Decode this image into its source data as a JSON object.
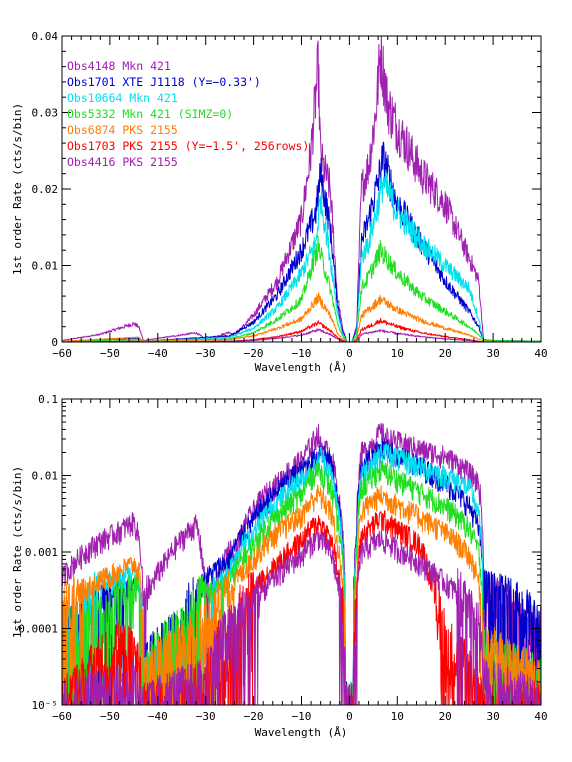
{
  "chart_data": [
    {
      "type": "line",
      "id": "top",
      "yscale": "linear",
      "xlabel": "Wavelength (Å)",
      "ylabel": "1st order Rate (cts/s/bin)",
      "xlim": [
        -60,
        40
      ],
      "ylim": [
        0,
        0.04
      ],
      "x_ticks": [
        -60,
        -50,
        -40,
        -30,
        -20,
        -10,
        0,
        10,
        20,
        30,
        40
      ],
      "x_tick_labels": [
        "−60",
        "−50",
        "−40",
        "−30",
        "−20",
        "−10",
        "0",
        "10",
        "20",
        "30",
        "40"
      ],
      "y_ticks": [
        0,
        0.01,
        0.02,
        0.03,
        0.04
      ],
      "y_tick_labels": [
        "0",
        "0.01",
        "0.02",
        "0.03",
        "0.04"
      ],
      "legend_position": "top-left",
      "legend": [
        {
          "label": "Obs4148 Mkn 421",
          "color": "#a020b0"
        },
        {
          "label": "Obs1701 XTE J1118 (Y=−0.33')",
          "color": "#0000cc"
        },
        {
          "label": "Obs10664 Mkn 421",
          "color": "#00e0ee"
        },
        {
          "label": "Obs5332 Mkn 421 (SIMZ=0)",
          "color": "#22dd22"
        },
        {
          "label": "Obs6874 PKS 2155",
          "color": "#ff7f00"
        },
        {
          "label": "Obs1703 PKS 2155 (Y=−1.5', 256rows)",
          "color": "#ff0000"
        },
        {
          "label": "Obs4416 PKS 2155",
          "color": "#a020b0"
        }
      ],
      "series": [
        {
          "color": "#a020b0",
          "x": [
            -60,
            -52,
            -45,
            -44,
            -43,
            -32,
            -31,
            -30,
            -25,
            -24,
            -20,
            -15,
            -10,
            -8,
            -6.5,
            -6,
            -4,
            -2.5,
            -1.5,
            -0.5,
            0.5,
            1.5,
            2.5,
            4,
            5.5,
            6.5,
            8,
            10,
            15,
            20,
            25,
            27,
            28,
            30,
            40
          ],
          "y": [
            0.0002,
            0.001,
            0.0024,
            0.002,
            0.0002,
            0.0012,
            0.0008,
            0.0003,
            0.0013,
            0.0008,
            0.0035,
            0.008,
            0.016,
            0.025,
            0.036,
            0.024,
            0.02,
            0.006,
            0.002,
            0.0,
            0.0,
            0.002,
            0.02,
            0.023,
            0.03,
            0.038,
            0.031,
            0.028,
            0.022,
            0.018,
            0.011,
            0.008,
            0.0003,
            0.0002,
            0.0001
          ]
        },
        {
          "color": "#0000cc",
          "x": [
            -60,
            -44,
            -43,
            -25,
            -20,
            -15,
            -10,
            -7,
            -6,
            -4,
            -2.5,
            -1.5,
            -0.5,
            0.5,
            1.5,
            2.5,
            4,
            6,
            7,
            10,
            15,
            20,
            25,
            27,
            28,
            40
          ],
          "y": [
            0.0001,
            0.0005,
            0.0001,
            0.0008,
            0.0026,
            0.0062,
            0.012,
            0.017,
            0.022,
            0.015,
            0.005,
            0.0015,
            0.0,
            0.0,
            0.0015,
            0.013,
            0.016,
            0.021,
            0.024,
            0.018,
            0.013,
            0.008,
            0.004,
            0.002,
            0.0002,
            0.0001
          ]
        },
        {
          "color": "#00e0ee",
          "x": [
            -60,
            -44,
            -43,
            -25,
            -20,
            -15,
            -10,
            -7,
            -6,
            -4,
            -2.5,
            -1.5,
            -0.5,
            0.5,
            1.5,
            2.5,
            4,
            6,
            7,
            10,
            15,
            20,
            25,
            27,
            28,
            40
          ],
          "y": [
            0.0001,
            0.0006,
            0.0001,
            0.0006,
            0.0018,
            0.0045,
            0.009,
            0.013,
            0.019,
            0.011,
            0.004,
            0.0012,
            0.0,
            0.0,
            0.0012,
            0.011,
            0.013,
            0.018,
            0.021,
            0.017,
            0.013,
            0.01,
            0.007,
            0.003,
            0.0002,
            0.0001
          ]
        },
        {
          "color": "#22dd22",
          "x": [
            -60,
            -44,
            -43,
            -25,
            -20,
            -15,
            -10,
            -6.5,
            -4,
            -2.5,
            -1.5,
            -0.5,
            0.5,
            1.5,
            2.5,
            4,
            6.5,
            10,
            15,
            20,
            25,
            27,
            28,
            40
          ],
          "y": [
            0.0001,
            0.0003,
            0.0001,
            0.0004,
            0.0012,
            0.003,
            0.0055,
            0.0125,
            0.007,
            0.0025,
            0.0008,
            0.0,
            0.0,
            0.0008,
            0.007,
            0.0085,
            0.012,
            0.009,
            0.006,
            0.004,
            0.002,
            0.001,
            0.0002,
            0.0001
          ]
        },
        {
          "color": "#ff7f00",
          "x": [
            -60,
            -44,
            -43,
            -25,
            -20,
            -15,
            -10,
            -6.5,
            -4,
            -2.5,
            -1.5,
            -0.5,
            0.5,
            1.5,
            2.5,
            4,
            6.5,
            10,
            15,
            20,
            25,
            27,
            28,
            40
          ],
          "y": [
            0.0001,
            0.0006,
            0.0001,
            0.0003,
            0.0008,
            0.0018,
            0.003,
            0.0058,
            0.0035,
            0.0012,
            0.0004,
            0.0,
            0.0,
            0.0004,
            0.0034,
            0.0042,
            0.0056,
            0.0042,
            0.0028,
            0.0018,
            0.0009,
            0.0004,
            0.0001,
            0.0
          ]
        },
        {
          "color": "#ff0000",
          "x": [
            -60,
            -44,
            -43,
            -25,
            -20,
            -15,
            -10,
            -6.5,
            -4,
            -2.5,
            -1.5,
            -0.5,
            0.5,
            1.5,
            2.5,
            4,
            6.5,
            10,
            15,
            20,
            25,
            27,
            28,
            40
          ],
          "y": [
            0.0,
            0.0001,
            0.0,
            0.0001,
            0.0003,
            0.0007,
            0.0014,
            0.0025,
            0.0015,
            0.0006,
            0.0002,
            0.0,
            0.0,
            0.0002,
            0.0016,
            0.002,
            0.0028,
            0.002,
            0.0012,
            0.0007,
            0.0003,
            0.0001,
            0.0,
            0.0
          ]
        },
        {
          "color": "#a020b0",
          "x": [
            -60,
            -44,
            -43,
            -25,
            -20,
            -15,
            -10,
            -6.5,
            -4,
            -2.5,
            -1.5,
            -0.5,
            0.5,
            1.5,
            2.5,
            4,
            6.5,
            10,
            15,
            20,
            25,
            27,
            28,
            40
          ],
          "y": [
            0.0,
            0.0001,
            0.0,
            0.0001,
            0.0002,
            0.0005,
            0.0009,
            0.0016,
            0.001,
            0.0004,
            0.0001,
            0.0,
            0.0,
            0.0001,
            0.001,
            0.0012,
            0.0015,
            0.0011,
            0.0007,
            0.0004,
            0.0002,
            0.0001,
            0.0,
            0.0
          ]
        }
      ]
    },
    {
      "type": "line",
      "id": "bottom",
      "yscale": "log",
      "xlabel": "Wavelength (Å)",
      "ylabel": "1st order Rate (cts/s/bin)",
      "xlim": [
        -60,
        40
      ],
      "ylim": [
        1e-05,
        0.1
      ],
      "x_ticks": [
        -60,
        -50,
        -40,
        -30,
        -20,
        -10,
        0,
        10,
        20,
        30,
        40
      ],
      "x_tick_labels": [
        "−60",
        "−50",
        "−40",
        "−30",
        "−20",
        "−10",
        "0",
        "10",
        "20",
        "30",
        "40"
      ],
      "y_ticks": [
        1e-05,
        0.0001,
        0.001,
        0.01,
        0.1
      ],
      "y_tick_labels": [
        "10⁻⁵",
        "0.0001",
        "0.001",
        "0.01",
        "0.1"
      ],
      "series": [
        {
          "color": "#a020b0",
          "x": [
            -60,
            -56,
            -52,
            -48,
            -45,
            -44,
            -43,
            -38,
            -35,
            -32,
            -31,
            -30,
            -27,
            -25,
            -24,
            -20,
            -15,
            -10,
            -8,
            -6.5,
            -6,
            -4,
            -2.5,
            -1.5,
            -0.8,
            0.8,
            1.5,
            2.5,
            4,
            5.5,
            6.5,
            8,
            10,
            15,
            20,
            25,
            27,
            28,
            30,
            35,
            40
          ],
          "y": [
            0.00045,
            0.0009,
            0.0014,
            0.0019,
            0.0025,
            0.0016,
            0.00016,
            0.0008,
            0.0015,
            0.0023,
            0.0011,
            0.00022,
            0.0005,
            0.0012,
            0.0007,
            0.0035,
            0.008,
            0.016,
            0.025,
            0.036,
            0.024,
            0.02,
            0.006,
            0.002,
            1e-05,
            1e-05,
            0.002,
            0.02,
            0.023,
            0.03,
            0.038,
            0.031,
            0.028,
            0.022,
            0.018,
            0.011,
            0.008,
            0.0003,
            0.00025,
            0.00015,
            0.0001
          ]
        },
        {
          "color": "#0000cc",
          "x": [
            -60,
            -50,
            -44,
            -43,
            -35,
            -25,
            -20,
            -15,
            -10,
            -7,
            -6,
            -4,
            -2.5,
            -1.5,
            -0.8,
            0.8,
            1.5,
            2.5,
            4,
            6,
            7,
            10,
            15,
            20,
            25,
            27,
            28,
            32,
            36,
            40
          ],
          "y": [
            0.0001,
            0.0002,
            0.0004,
            3e-05,
            0.0001,
            0.0008,
            0.0026,
            0.0062,
            0.012,
            0.017,
            0.022,
            0.015,
            0.005,
            0.0015,
            1e-05,
            1e-05,
            0.0015,
            0.013,
            0.016,
            0.021,
            0.024,
            0.018,
            0.013,
            0.008,
            0.004,
            0.002,
            0.0003,
            0.00025,
            0.00018,
            0.0001
          ]
        },
        {
          "color": "#00e0ee",
          "x": [
            -60,
            -55,
            -50,
            -45,
            -44,
            -43,
            -35,
            -30,
            -25,
            -20,
            -15,
            -10,
            -7,
            -6,
            -4,
            -2.5,
            -1.5,
            -0.8,
            0.8,
            1.5,
            2.5,
            4,
            6,
            7,
            10,
            15,
            20,
            25,
            27,
            28,
            30,
            40
          ],
          "y": [
            0.0001,
            0.0002,
            0.0004,
            0.00055,
            0.0004,
            2e-05,
            5e-05,
            0.0001,
            0.0006,
            0.0018,
            0.0045,
            0.009,
            0.013,
            0.019,
            0.011,
            0.004,
            0.0012,
            1e-05,
            1e-05,
            0.0012,
            0.011,
            0.013,
            0.018,
            0.021,
            0.017,
            0.013,
            0.01,
            0.007,
            0.003,
            5e-05,
            2e-05,
            2e-05
          ]
        },
        {
          "color": "#22dd22",
          "x": [
            -60,
            -50,
            -44,
            -43,
            -35,
            -30,
            -25,
            -20,
            -15,
            -10,
            -6.5,
            -4,
            -2.5,
            -1.5,
            -0.8,
            0.8,
            1.5,
            2.5,
            4,
            6.5,
            10,
            15,
            20,
            25,
            27,
            28,
            40
          ],
          "y": [
            8e-05,
            0.00015,
            0.0003,
            2e-05,
            0.0001,
            0.0003,
            0.0004,
            0.0012,
            0.003,
            0.0055,
            0.0125,
            0.007,
            0.0025,
            0.0008,
            1e-05,
            1e-05,
            0.0008,
            0.007,
            0.0085,
            0.012,
            0.009,
            0.006,
            0.004,
            0.002,
            0.001,
            5e-05,
            2e-05
          ]
        },
        {
          "color": "#ff7f00",
          "x": [
            -60,
            -55,
            -50,
            -45,
            -44,
            -43,
            -35,
            -30,
            -25,
            -20,
            -15,
            -10,
            -6.5,
            -4,
            -2.5,
            -1.5,
            -0.8,
            0.8,
            1.5,
            2.5,
            4,
            6.5,
            10,
            15,
            20,
            25,
            27,
            28,
            35,
            40
          ],
          "y": [
            0.0002,
            0.00035,
            0.0005,
            0.0007,
            0.0006,
            2e-05,
            6e-05,
            0.00012,
            0.0003,
            0.0008,
            0.0018,
            0.003,
            0.0058,
            0.0035,
            0.0012,
            0.0004,
            1e-05,
            1e-05,
            0.0004,
            0.0034,
            0.0042,
            0.0056,
            0.0042,
            0.0028,
            0.0018,
            0.0009,
            0.0004,
            6e-05,
            3e-05,
            2e-05
          ]
        },
        {
          "color": "#ff0000",
          "x": [
            -60,
            -56,
            -52,
            -48,
            -45,
            -43,
            -35,
            -30,
            -25,
            -20,
            -15,
            -10,
            -6.5,
            -4,
            -2.5,
            -1.5,
            -0.8,
            0.8,
            1.5,
            2.5,
            4,
            6.5,
            10,
            15,
            17,
            20,
            25,
            27,
            28,
            40
          ],
          "y": [
            1e-05,
            2e-05,
            4e-05,
            6e-05,
            5e-05,
            1e-05,
            1e-05,
            2e-05,
            0.0001,
            0.0003,
            0.0007,
            0.0014,
            0.0025,
            0.0015,
            0.0006,
            0.0002,
            1e-05,
            1e-05,
            0.0002,
            0.0016,
            0.002,
            0.0028,
            0.002,
            0.0012,
            0.0004,
            7e-05,
            3e-05,
            2e-05,
            1e-05,
            1e-05
          ]
        },
        {
          "color": "#a020b0",
          "x": [
            -60,
            -44,
            -43,
            -30,
            -25,
            -20,
            -15,
            -10,
            -6.5,
            -4,
            -2.5,
            -1.5,
            -0.8,
            0.8,
            1.5,
            2.5,
            4,
            6.5,
            10,
            15,
            20,
            25,
            27,
            28,
            40
          ],
          "y": [
            1e-05,
            2e-05,
            1e-05,
            2e-05,
            0.0001,
            0.0002,
            0.0005,
            0.0009,
            0.0016,
            0.001,
            0.0004,
            0.0001,
            1e-05,
            1e-05,
            0.0001,
            0.001,
            0.0012,
            0.0015,
            0.0011,
            0.0007,
            0.0004,
            0.0002,
            0.0001,
            2e-05,
            1e-05
          ]
        }
      ]
    }
  ]
}
